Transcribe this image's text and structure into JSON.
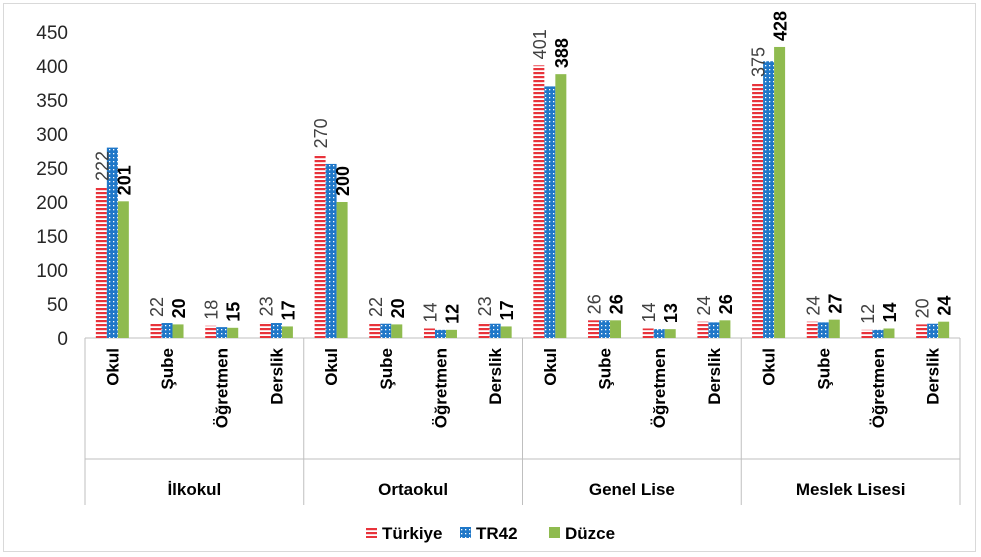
{
  "chart_data": {
    "type": "bar",
    "ylim": [
      0,
      450
    ],
    "yticks": [
      "0",
      "50",
      "100",
      "150",
      "200",
      "250",
      "300",
      "350",
      "400",
      "450"
    ],
    "groups": [
      {
        "name": "İlkokul",
        "categories": [
          "Okul",
          "Şube",
          "Öğretmen",
          "Derslik"
        ]
      },
      {
        "name": "Ortaokul",
        "categories": [
          "Okul",
          "Şube",
          "Öğretmen",
          "Derslik"
        ]
      },
      {
        "name": "Genel Lise",
        "categories": [
          "Okul",
          "Şube",
          "Öğretmen",
          "Derslik"
        ]
      },
      {
        "name": "Meslek Lisesi",
        "categories": [
          "Okul",
          "Şube",
          "Öğretmen",
          "Derslik"
        ]
      }
    ],
    "series": [
      {
        "name": "Türkiye",
        "color": "#e8333b",
        "pattern": "horizontal-stripes",
        "values": [
          222,
          22,
          18,
          23,
          270,
          22,
          14,
          23,
          401,
          26,
          14,
          24,
          375,
          24,
          12,
          20
        ],
        "labels": [
          "222",
          "22",
          "18",
          "23",
          "270",
          "22",
          "14",
          "23",
          "401",
          "26",
          "14",
          "24",
          "375",
          "24",
          "12",
          "20"
        ]
      },
      {
        "name": "TR42",
        "color": "#1f77c8",
        "pattern": "dotted",
        "values": [
          280,
          22,
          16,
          22,
          256,
          21,
          12,
          21,
          370,
          26,
          13,
          23,
          407,
          23,
          12,
          21
        ],
        "labels": []
      },
      {
        "name": "Düzce",
        "color": "#8fbb4f",
        "pattern": "solid",
        "values": [
          201,
          20,
          15,
          17,
          200,
          20,
          12,
          17,
          388,
          26,
          13,
          26,
          428,
          27,
          14,
          24
        ],
        "labels": [
          "201",
          "20",
          "15",
          "17",
          "200",
          "20",
          "12",
          "17",
          "388",
          "26",
          "13",
          "26",
          "428",
          "27",
          "14",
          "24"
        ]
      }
    ],
    "legend_position": "bottom"
  }
}
